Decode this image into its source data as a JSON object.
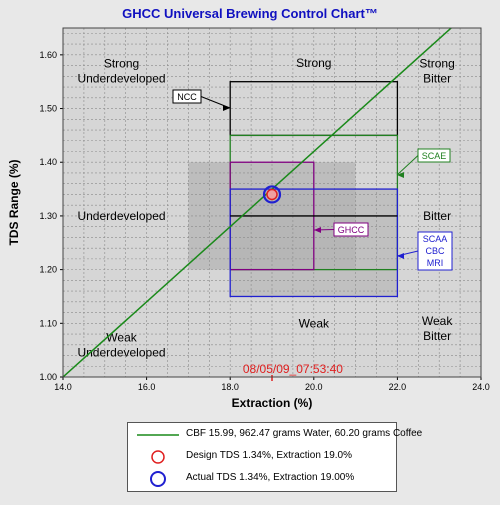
{
  "chart_data": {
    "type": "scatter",
    "title": "GHCC Universal Brewing Control Chart™",
    "xlabel": "Extraction (%)",
    "ylabel": "TDS Range (%)",
    "xlim": [
      14.0,
      24.0
    ],
    "ylim": [
      1.0,
      1.65
    ],
    "x_ticks": [
      "14.0",
      "16.0",
      "18.0",
      "20.0",
      "22.0",
      "24.0"
    ],
    "y_ticks": [
      "1.00",
      "1.10",
      "1.20",
      "1.30",
      "1.40",
      "1.50",
      "1.60"
    ],
    "grid": true,
    "timestamp": "08/05/09_07:53:40",
    "region_labels": [
      {
        "text": "Strong\nUnderdeveloped",
        "x": 15.4,
        "y": 1.57
      },
      {
        "text": "Strong",
        "x": 20.0,
        "y": 1.585
      },
      {
        "text": "Strong\nBitter",
        "x": 22.95,
        "y": 1.57
      },
      {
        "text": "Underdeveloped",
        "x": 15.4,
        "y": 1.3
      },
      {
        "text": "Bitter",
        "x": 22.95,
        "y": 1.3
      },
      {
        "text": "Weak\nUnderdeveloped",
        "x": 15.4,
        "y": 1.06
      },
      {
        "text": "Weak",
        "x": 20.0,
        "y": 1.1
      },
      {
        "text": "Weak\nBitter",
        "x": 22.95,
        "y": 1.09
      }
    ],
    "zones": [
      {
        "name": "NCC",
        "x": [
          18.0,
          22.0
        ],
        "y": [
          1.45,
          1.55
        ],
        "color": "#000000"
      },
      {
        "name": "SCAE",
        "x": [
          18.0,
          22.0
        ],
        "y": [
          1.2,
          1.45
        ],
        "color": "#208020"
      },
      {
        "name": "GHCC",
        "x": [
          18.0,
          20.0
        ],
        "y": [
          1.2,
          1.4
        ],
        "color": "#800080"
      },
      {
        "name": "SCAA\nCBC\nMRI",
        "x": [
          18.0,
          22.0
        ],
        "y": [
          1.15,
          1.35
        ],
        "color": "#2020d0"
      }
    ],
    "brew_line": {
      "name": "CBF 15.99,  962.47 grams Water,  60.20 grams Coffee",
      "x": [
        14.0,
        24.0
      ],
      "y": [
        1.0,
        1.7
      ],
      "color": "#1a8a1a"
    },
    "design_point": {
      "name": "Design TDS 1.34%, Extraction  19.0%",
      "x": 19.0,
      "y": 1.34,
      "color": "#e02020"
    },
    "actual_point": {
      "name": "Actual TDS 1.34%, Extraction  19.00%",
      "x": 19.0,
      "y": 1.34,
      "color": "#2020d0"
    }
  }
}
